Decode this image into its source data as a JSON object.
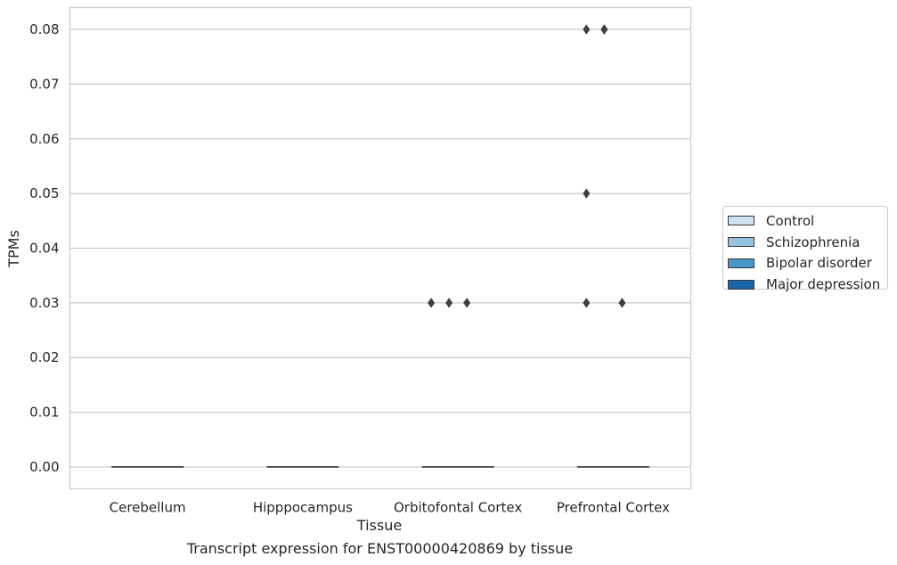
{
  "caption": "Transcript expression for ENST00000420869 by tissue",
  "chart_data": {
    "type": "box",
    "xlabel": "Tissue",
    "ylabel": "TPMs",
    "ylim": [
      -0.004,
      0.084
    ],
    "yticks": [
      0.0,
      0.01,
      0.02,
      0.03,
      0.04,
      0.05,
      0.06,
      0.07,
      0.08
    ],
    "ytick_labels": [
      "0.00",
      "0.01",
      "0.02",
      "0.03",
      "0.04",
      "0.05",
      "0.06",
      "0.07",
      "0.08"
    ],
    "categories": [
      "Cerebellum",
      "Hipppocampus",
      "Orbitofontal Cortex",
      "Prefrontal Cortex"
    ],
    "grid": "horizontal",
    "legend_position": "right",
    "series": [
      {
        "name": "Control",
        "color": "#d0e1f2",
        "boxes": [
          {
            "q1": 0,
            "median": 0,
            "q3": 0,
            "whisker_low": 0,
            "whisker_high": 0,
            "outliers": []
          },
          {
            "q1": 0,
            "median": 0,
            "q3": 0,
            "whisker_low": 0,
            "whisker_high": 0,
            "outliers": []
          },
          {
            "q1": 0,
            "median": 0,
            "q3": 0,
            "whisker_low": 0,
            "whisker_high": 0,
            "outliers": [
              0.03
            ]
          },
          {
            "q1": 0,
            "median": 0,
            "q3": 0,
            "whisker_low": 0,
            "whisker_high": 0,
            "outliers": [
              0.08,
              0.05,
              0.03
            ]
          }
        ]
      },
      {
        "name": "Schizophrenia",
        "color": "#94c4df",
        "boxes": [
          {
            "q1": 0,
            "median": 0,
            "q3": 0,
            "whisker_low": 0,
            "whisker_high": 0,
            "outliers": []
          },
          {
            "q1": 0,
            "median": 0,
            "q3": 0,
            "whisker_low": 0,
            "whisker_high": 0,
            "outliers": []
          },
          {
            "q1": 0,
            "median": 0,
            "q3": 0,
            "whisker_low": 0,
            "whisker_high": 0,
            "outliers": [
              0.03
            ]
          },
          {
            "q1": 0,
            "median": 0,
            "q3": 0,
            "whisker_low": 0,
            "whisker_high": 0,
            "outliers": [
              0.08,
              0.08
            ]
          }
        ]
      },
      {
        "name": "Bipolar disorder",
        "color": "#4a98c9",
        "boxes": [
          {
            "q1": 0,
            "median": 0,
            "q3": 0,
            "whisker_low": 0,
            "whisker_high": 0,
            "outliers": []
          },
          {
            "q1": 0,
            "median": 0,
            "q3": 0,
            "whisker_low": 0,
            "whisker_high": 0,
            "outliers": []
          },
          {
            "q1": 0,
            "median": 0,
            "q3": 0,
            "whisker_low": 0,
            "whisker_high": 0,
            "outliers": [
              0.03
            ]
          },
          {
            "q1": 0,
            "median": 0,
            "q3": 0,
            "whisker_low": 0,
            "whisker_high": 0,
            "outliers": [
              0.03
            ]
          }
        ]
      },
      {
        "name": "Major depression",
        "color": "#1764ab",
        "boxes": [
          {
            "q1": 0,
            "median": 0,
            "q3": 0,
            "whisker_low": 0,
            "whisker_high": 0,
            "outliers": []
          },
          {
            "q1": 0,
            "median": 0,
            "q3": 0,
            "whisker_low": 0,
            "whisker_high": 0,
            "outliers": []
          },
          {
            "q1": 0,
            "median": 0,
            "q3": 0,
            "whisker_low": 0,
            "whisker_high": 0,
            "outliers": []
          },
          {
            "q1": 0,
            "median": 0,
            "q3": 0,
            "whisker_low": 0,
            "whisker_high": 0,
            "outliers": []
          }
        ]
      }
    ]
  }
}
